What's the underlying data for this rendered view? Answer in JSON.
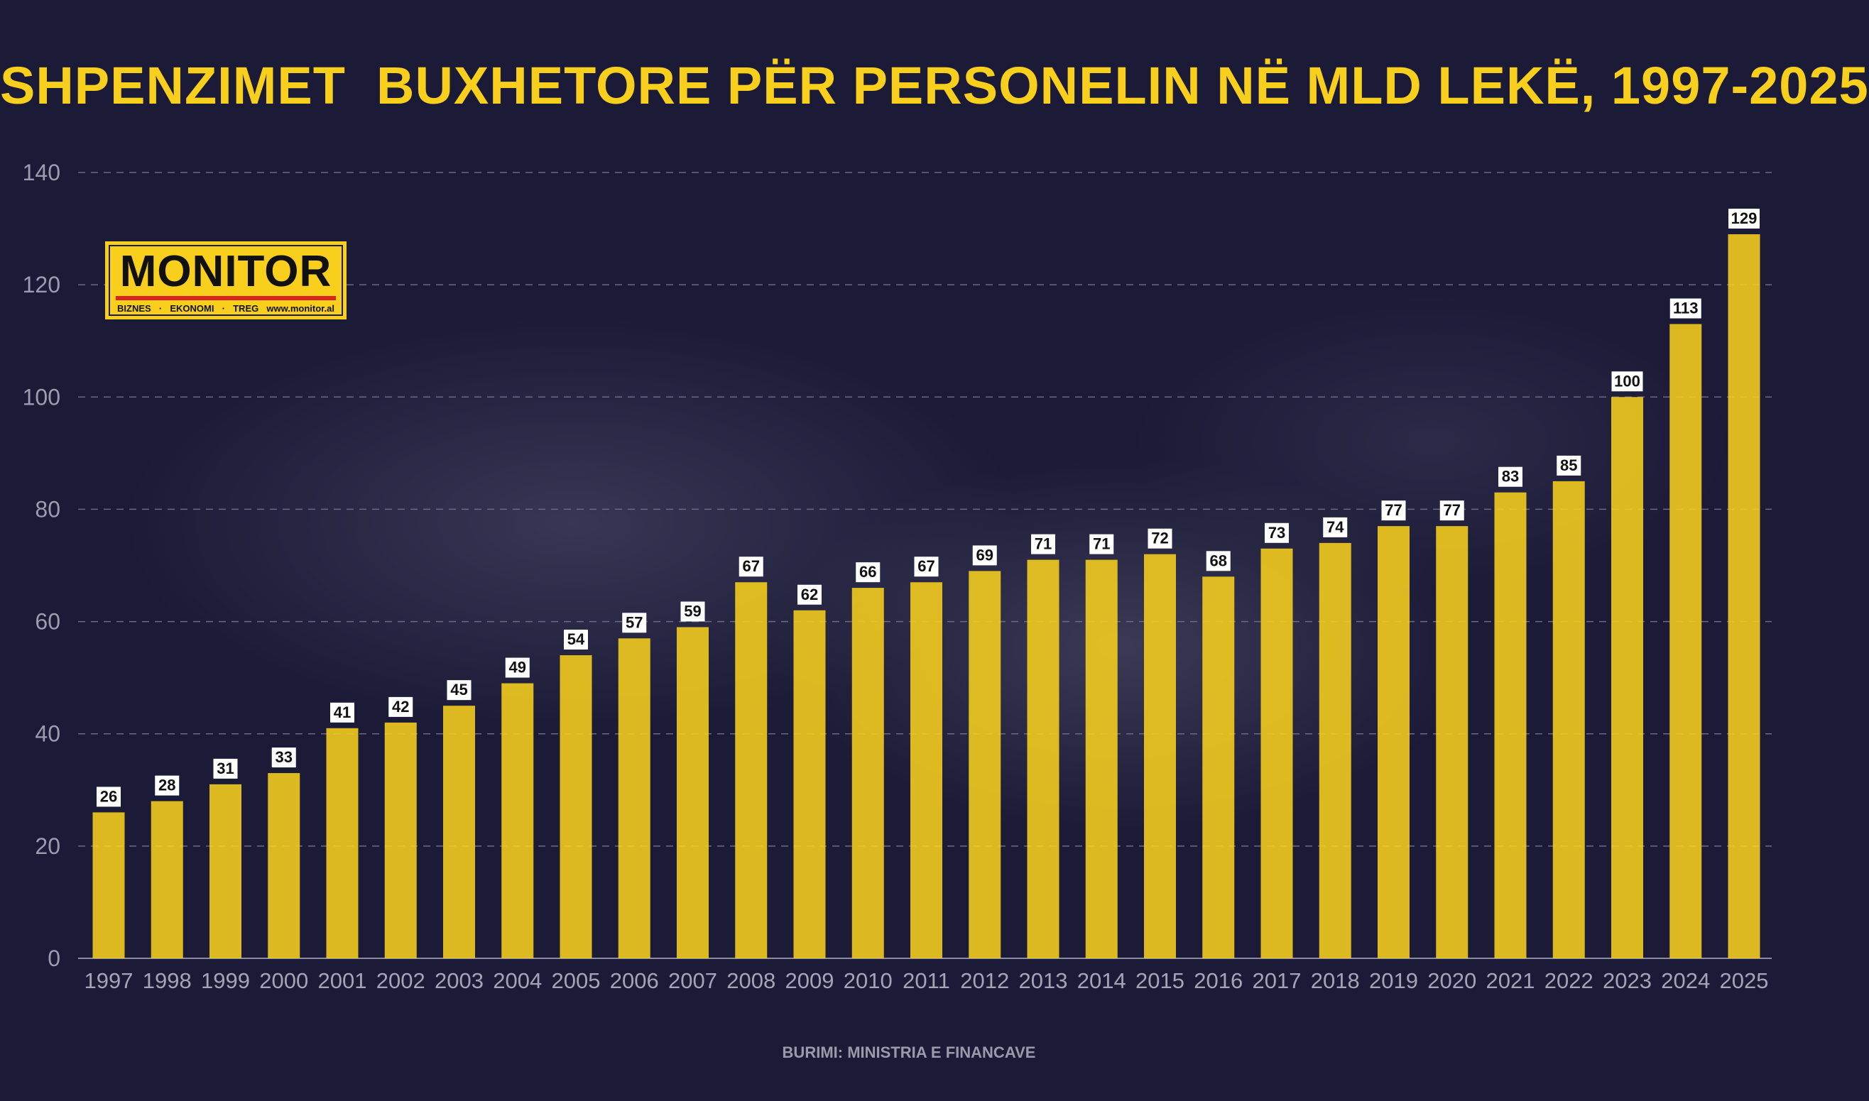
{
  "chart_data": {
    "type": "bar",
    "title": "SHPENZIMET  BUXHETORE PËR PERSONELIN NË MLD LEKË, 1997-2025",
    "categories": [
      "1997",
      "1998",
      "1999",
      "2000",
      "2001",
      "2002",
      "2003",
      "2004",
      "2005",
      "2006",
      "2007",
      "2008",
      "2009",
      "2010",
      "2011",
      "2012",
      "2013",
      "2014",
      "2015",
      "2016",
      "2017",
      "2018",
      "2019",
      "2020",
      "2021",
      "2022",
      "2023",
      "2024",
      "2025"
    ],
    "values": [
      26,
      28,
      31,
      33,
      41,
      42,
      45,
      49,
      54,
      57,
      59,
      67,
      62,
      66,
      67,
      69,
      71,
      71,
      72,
      68,
      73,
      74,
      77,
      77,
      83,
      85,
      100,
      113,
      129
    ],
    "yticks": [
      0,
      20,
      40,
      60,
      80,
      100,
      120,
      140
    ],
    "ylim": [
      0,
      140
    ],
    "xlabel": "",
    "ylabel": "",
    "grid": true,
    "bar_color": "#f7cf1c",
    "title_color": "#f7cf1c",
    "background_color": "#1b1b38"
  },
  "logo": {
    "word": "MONITOR",
    "tags": [
      "BIZNES",
      "·",
      "EKONOMI",
      "·",
      "TREG",
      "www.monitor.al"
    ]
  },
  "source": "BURIMI: MINISTRIA E FINANCAVE"
}
